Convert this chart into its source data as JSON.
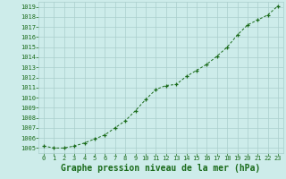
{
  "x": [
    0,
    1,
    2,
    3,
    4,
    5,
    6,
    7,
    8,
    9,
    10,
    11,
    12,
    13,
    14,
    15,
    16,
    17,
    18,
    19,
    20,
    21,
    22,
    23
  ],
  "y": [
    1005.2,
    1005.0,
    1005.0,
    1005.2,
    1005.5,
    1005.9,
    1006.3,
    1007.0,
    1007.7,
    1008.7,
    1009.8,
    1010.8,
    1011.2,
    1011.3,
    1012.1,
    1012.7,
    1013.3,
    1014.1,
    1015.0,
    1016.2,
    1017.2,
    1017.7,
    1018.2,
    1019.1
  ],
  "ylim": [
    1004.5,
    1019.5
  ],
  "yticks": [
    1005,
    1006,
    1007,
    1008,
    1009,
    1010,
    1011,
    1012,
    1013,
    1014,
    1015,
    1016,
    1017,
    1018,
    1019
  ],
  "xlim": [
    -0.5,
    23.5
  ],
  "xticks": [
    0,
    1,
    2,
    3,
    4,
    5,
    6,
    7,
    8,
    9,
    10,
    11,
    12,
    13,
    14,
    15,
    16,
    17,
    18,
    19,
    20,
    21,
    22,
    23
  ],
  "line_color": "#1a6b1a",
  "marker_color": "#1a6b1a",
  "bg_plot": "#cdecea",
  "bg_fig": "#cdecea",
  "grid_color": "#aacfcc",
  "xlabel": "Graphe pression niveau de la mer (hPa)",
  "xlabel_color": "#1a6b1a",
  "tick_color": "#1a6b1a",
  "label_fontsize": 5.0,
  "xlabel_fontsize": 7.0
}
